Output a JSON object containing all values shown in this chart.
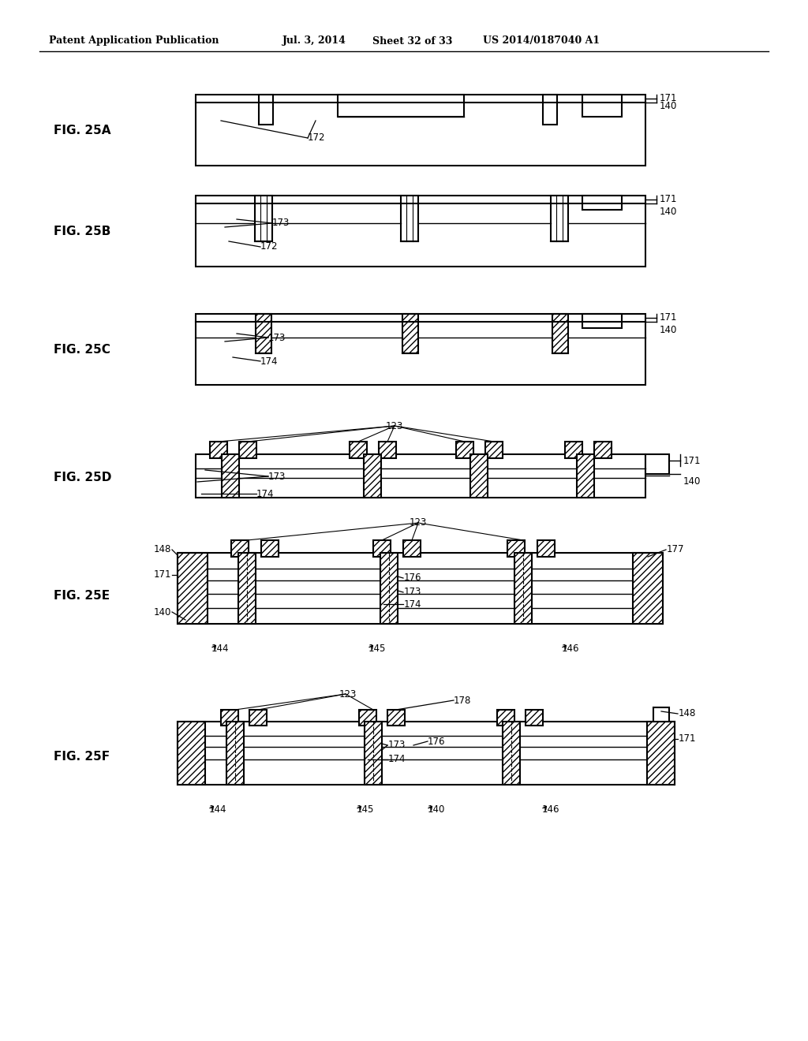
{
  "bg_color": "#ffffff",
  "header_text": "Patent Application Publication",
  "header_date": "Jul. 3, 2014",
  "header_sheet": "Sheet 32 of 33",
  "header_patent": "US 2014/0187040 A1"
}
